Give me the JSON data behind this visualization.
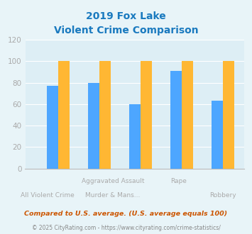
{
  "title_line1": "2019 Fox Lake",
  "title_line2": "Violent Crime Comparison",
  "categories": [
    "All Violent Crime",
    "Aggravated Assault",
    "Murder & Mans...",
    "Rape",
    "Robbery"
  ],
  "fox_lake": [
    0,
    0,
    0,
    0,
    0
  ],
  "wisconsin": [
    77,
    80,
    60,
    91,
    63
  ],
  "national": [
    100,
    100,
    100,
    100,
    100
  ],
  "fox_lake_color": "#7bc87a",
  "wisconsin_color": "#4da6ff",
  "national_color": "#ffb733",
  "title_color": "#1a7abf",
  "bg_color": "#e8f4f8",
  "plot_bg_color": "#ddeef5",
  "ylim": [
    0,
    120
  ],
  "yticks": [
    0,
    20,
    40,
    60,
    80,
    100,
    120
  ],
  "footnote1": "Compared to U.S. average. (U.S. average equals 100)",
  "footnote2": "© 2025 CityRating.com - https://www.cityrating.com/crime-statistics/",
  "footnote1_color": "#cc5500",
  "footnote2_color": "#888888",
  "tick_label_color": "#aaaaaa",
  "grid_color": "#ffffff",
  "bar_width": 0.28,
  "top_row_labels": [
    "",
    "Aggravated Assault",
    "",
    "Rape",
    ""
  ],
  "bottom_row_labels": [
    "All Violent Crime",
    "Murder & Mans...",
    "",
    "",
    "Robbery"
  ]
}
